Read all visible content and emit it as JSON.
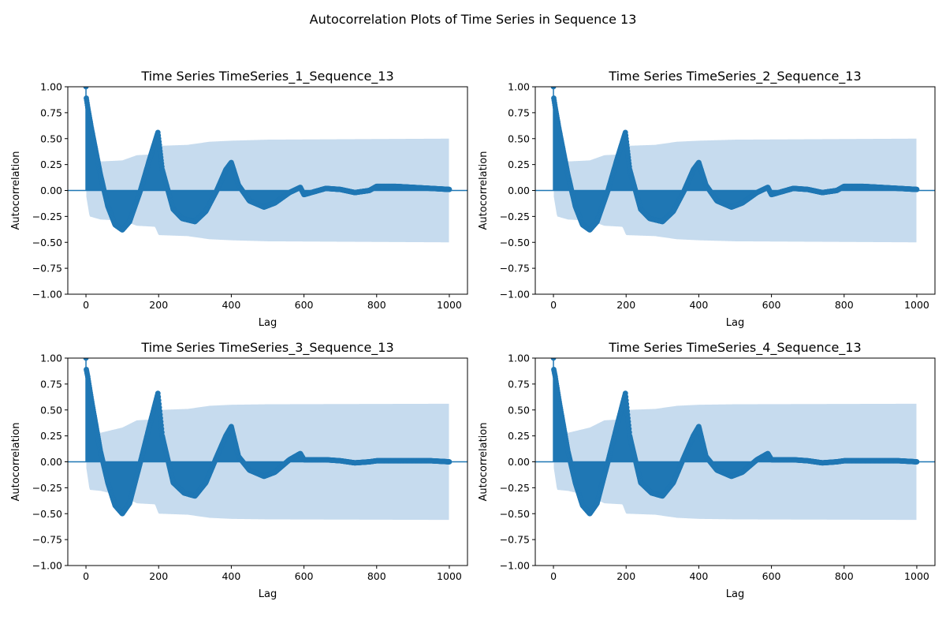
{
  "figure": {
    "title": "Autocorrelation Plots of Time Series in Sequence 13",
    "colors": {
      "stem": "#1f77b4",
      "confidence_band": "#c6dbee",
      "zero_line": "#1f77b4",
      "axes": "#000000"
    }
  },
  "chart_data": [
    {
      "type": "acf-stem",
      "title": "Time Series TimeSeries_1_Sequence_13",
      "xlabel": "Lag",
      "ylabel": "Autocorrelation",
      "xlim": [
        -50,
        1050
      ],
      "ylim": [
        -1.0,
        1.0
      ],
      "xticks": [
        0,
        200,
        400,
        600,
        800,
        1000
      ],
      "yticks": [
        -1.0,
        -0.75,
        -0.5,
        -0.25,
        0.0,
        0.25,
        0.5,
        0.75,
        1.0
      ],
      "xticklabels": [
        "0",
        "200",
        "400",
        "600",
        "800",
        "1000"
      ],
      "yticklabels": [
        "−1.00",
        "−0.75",
        "−0.50",
        "−0.25",
        "0.00",
        "0.25",
        "0.50",
        "0.75",
        "1.00"
      ],
      "nlags": 1000,
      "acf_points": [
        [
          0,
          1.0
        ],
        [
          1,
          0.89
        ],
        [
          5,
          0.8
        ],
        [
          15,
          0.6
        ],
        [
          40,
          0.15
        ],
        [
          60,
          -0.15
        ],
        [
          80,
          -0.33
        ],
        [
          100,
          -0.38
        ],
        [
          120,
          -0.3
        ],
        [
          150,
          0.0
        ],
        [
          175,
          0.3
        ],
        [
          198,
          0.56
        ],
        [
          210,
          0.2
        ],
        [
          240,
          -0.18
        ],
        [
          265,
          -0.27
        ],
        [
          300,
          -0.3
        ],
        [
          330,
          -0.2
        ],
        [
          360,
          0.0
        ],
        [
          385,
          0.2
        ],
        [
          400,
          0.27
        ],
        [
          420,
          0.05
        ],
        [
          450,
          -0.1
        ],
        [
          490,
          -0.16
        ],
        [
          520,
          -0.12
        ],
        [
          560,
          -0.02
        ],
        [
          590,
          0.03
        ],
        [
          600,
          -0.04
        ],
        [
          620,
          -0.02
        ],
        [
          660,
          0.02
        ],
        [
          700,
          0.01
        ],
        [
          740,
          -0.02
        ],
        [
          780,
          0.0
        ],
        [
          800,
          0.04
        ],
        [
          850,
          0.04
        ],
        [
          900,
          0.03
        ],
        [
          950,
          0.02
        ],
        [
          1000,
          0.01
        ]
      ],
      "conf_points": [
        [
          1,
          0.06
        ],
        [
          10,
          0.25
        ],
        [
          40,
          0.28
        ],
        [
          100,
          0.29
        ],
        [
          140,
          0.34
        ],
        [
          190,
          0.35
        ],
        [
          200,
          0.43
        ],
        [
          280,
          0.44
        ],
        [
          340,
          0.47
        ],
        [
          400,
          0.48
        ],
        [
          500,
          0.49
        ],
        [
          1000,
          0.5
        ]
      ]
    },
    {
      "type": "acf-stem",
      "title": "Time Series TimeSeries_2_Sequence_13",
      "xlabel": "Lag",
      "ylabel": "Autocorrelation",
      "xlim": [
        -50,
        1050
      ],
      "ylim": [
        -1.0,
        1.0
      ],
      "xticks": [
        0,
        200,
        400,
        600,
        800,
        1000
      ],
      "yticks": [
        -1.0,
        -0.75,
        -0.5,
        -0.25,
        0.0,
        0.25,
        0.5,
        0.75,
        1.0
      ],
      "xticklabels": [
        "0",
        "200",
        "400",
        "600",
        "800",
        "1000"
      ],
      "yticklabels": [
        "−1.00",
        "−0.75",
        "−0.50",
        "−0.25",
        "0.00",
        "0.25",
        "0.50",
        "0.75",
        "1.00"
      ],
      "nlags": 1000,
      "acf_points": [
        [
          0,
          1.0
        ],
        [
          1,
          0.89
        ],
        [
          5,
          0.8
        ],
        [
          15,
          0.6
        ],
        [
          40,
          0.15
        ],
        [
          60,
          -0.15
        ],
        [
          80,
          -0.33
        ],
        [
          100,
          -0.38
        ],
        [
          120,
          -0.3
        ],
        [
          150,
          0.0
        ],
        [
          175,
          0.3
        ],
        [
          198,
          0.56
        ],
        [
          210,
          0.2
        ],
        [
          240,
          -0.18
        ],
        [
          265,
          -0.27
        ],
        [
          300,
          -0.3
        ],
        [
          330,
          -0.2
        ],
        [
          360,
          0.0
        ],
        [
          385,
          0.2
        ],
        [
          400,
          0.27
        ],
        [
          420,
          0.05
        ],
        [
          450,
          -0.1
        ],
        [
          490,
          -0.16
        ],
        [
          520,
          -0.12
        ],
        [
          560,
          -0.02
        ],
        [
          590,
          0.03
        ],
        [
          600,
          -0.04
        ],
        [
          620,
          -0.02
        ],
        [
          660,
          0.02
        ],
        [
          700,
          0.01
        ],
        [
          740,
          -0.02
        ],
        [
          780,
          0.0
        ],
        [
          800,
          0.04
        ],
        [
          850,
          0.04
        ],
        [
          900,
          0.03
        ],
        [
          950,
          0.02
        ],
        [
          1000,
          0.01
        ]
      ],
      "conf_points": [
        [
          1,
          0.06
        ],
        [
          10,
          0.25
        ],
        [
          40,
          0.28
        ],
        [
          100,
          0.29
        ],
        [
          140,
          0.34
        ],
        [
          190,
          0.35
        ],
        [
          200,
          0.43
        ],
        [
          280,
          0.44
        ],
        [
          340,
          0.47
        ],
        [
          400,
          0.48
        ],
        [
          500,
          0.49
        ],
        [
          1000,
          0.5
        ]
      ]
    },
    {
      "type": "acf-stem",
      "title": "Time Series TimeSeries_3_Sequence_13",
      "xlabel": "Lag",
      "ylabel": "Autocorrelation",
      "xlim": [
        -50,
        1050
      ],
      "ylim": [
        -1.0,
        1.0
      ],
      "xticks": [
        0,
        200,
        400,
        600,
        800,
        1000
      ],
      "yticks": [
        -1.0,
        -0.75,
        -0.5,
        -0.25,
        0.0,
        0.25,
        0.5,
        0.75,
        1.0
      ],
      "xticklabels": [
        "0",
        "200",
        "400",
        "600",
        "800",
        "1000"
      ],
      "yticklabels": [
        "−1.00",
        "−0.75",
        "−0.50",
        "−0.25",
        "0.00",
        "0.25",
        "0.50",
        "0.75",
        "1.00"
      ],
      "nlags": 1000,
      "acf_points": [
        [
          0,
          1.0
        ],
        [
          1,
          0.89
        ],
        [
          5,
          0.82
        ],
        [
          15,
          0.6
        ],
        [
          40,
          0.1
        ],
        [
          60,
          -0.2
        ],
        [
          80,
          -0.42
        ],
        [
          100,
          -0.5
        ],
        [
          120,
          -0.4
        ],
        [
          150,
          0.0
        ],
        [
          175,
          0.35
        ],
        [
          198,
          0.66
        ],
        [
          210,
          0.25
        ],
        [
          240,
          -0.2
        ],
        [
          270,
          -0.3
        ],
        [
          300,
          -0.33
        ],
        [
          330,
          -0.2
        ],
        [
          360,
          0.05
        ],
        [
          385,
          0.25
        ],
        [
          400,
          0.34
        ],
        [
          420,
          0.05
        ],
        [
          450,
          -0.08
        ],
        [
          490,
          -0.14
        ],
        [
          520,
          -0.1
        ],
        [
          560,
          0.02
        ],
        [
          590,
          0.08
        ],
        [
          600,
          0.02
        ],
        [
          620,
          0.02
        ],
        [
          660,
          0.02
        ],
        [
          700,
          0.01
        ],
        [
          740,
          -0.01
        ],
        [
          780,
          0.0
        ],
        [
          800,
          0.01
        ],
        [
          850,
          0.01
        ],
        [
          900,
          0.01
        ],
        [
          950,
          0.01
        ],
        [
          1000,
          0.0
        ]
      ],
      "conf_points": [
        [
          1,
          0.06
        ],
        [
          10,
          0.27
        ],
        [
          40,
          0.28
        ],
        [
          100,
          0.33
        ],
        [
          140,
          0.4
        ],
        [
          190,
          0.41
        ],
        [
          200,
          0.5
        ],
        [
          280,
          0.51
        ],
        [
          340,
          0.54
        ],
        [
          400,
          0.55
        ],
        [
          500,
          0.555
        ],
        [
          1000,
          0.56
        ]
      ]
    },
    {
      "type": "acf-stem",
      "title": "Time Series TimeSeries_4_Sequence_13",
      "xlabel": "Lag",
      "ylabel": "Autocorrelation",
      "xlim": [
        -50,
        1050
      ],
      "ylim": [
        -1.0,
        1.0
      ],
      "xticks": [
        0,
        200,
        400,
        600,
        800,
        1000
      ],
      "yticks": [
        -1.0,
        -0.75,
        -0.5,
        -0.25,
        0.0,
        0.25,
        0.5,
        0.75,
        1.0
      ],
      "xticklabels": [
        "0",
        "200",
        "400",
        "600",
        "800",
        "1000"
      ],
      "yticklabels": [
        "−1.00",
        "−0.75",
        "−0.50",
        "−0.25",
        "0.00",
        "0.25",
        "0.50",
        "0.75",
        "1.00"
      ],
      "nlags": 1000,
      "acf_points": [
        [
          0,
          1.0
        ],
        [
          1,
          0.89
        ],
        [
          5,
          0.82
        ],
        [
          15,
          0.6
        ],
        [
          40,
          0.1
        ],
        [
          60,
          -0.2
        ],
        [
          80,
          -0.42
        ],
        [
          100,
          -0.5
        ],
        [
          120,
          -0.4
        ],
        [
          150,
          0.0
        ],
        [
          175,
          0.35
        ],
        [
          198,
          0.66
        ],
        [
          210,
          0.25
        ],
        [
          240,
          -0.2
        ],
        [
          270,
          -0.3
        ],
        [
          300,
          -0.33
        ],
        [
          330,
          -0.2
        ],
        [
          360,
          0.05
        ],
        [
          385,
          0.25
        ],
        [
          400,
          0.34
        ],
        [
          420,
          0.05
        ],
        [
          450,
          -0.08
        ],
        [
          490,
          -0.14
        ],
        [
          520,
          -0.1
        ],
        [
          560,
          0.02
        ],
        [
          590,
          0.08
        ],
        [
          600,
          0.02
        ],
        [
          620,
          0.02
        ],
        [
          660,
          0.02
        ],
        [
          700,
          0.01
        ],
        [
          740,
          -0.01
        ],
        [
          780,
          0.0
        ],
        [
          800,
          0.01
        ],
        [
          850,
          0.01
        ],
        [
          900,
          0.01
        ],
        [
          950,
          0.01
        ],
        [
          1000,
          0.0
        ]
      ],
      "conf_points": [
        [
          1,
          0.06
        ],
        [
          10,
          0.27
        ],
        [
          40,
          0.28
        ],
        [
          100,
          0.33
        ],
        [
          140,
          0.4
        ],
        [
          190,
          0.41
        ],
        [
          200,
          0.5
        ],
        [
          280,
          0.51
        ],
        [
          340,
          0.54
        ],
        [
          400,
          0.55
        ],
        [
          500,
          0.555
        ],
        [
          1000,
          0.56
        ]
      ]
    }
  ]
}
